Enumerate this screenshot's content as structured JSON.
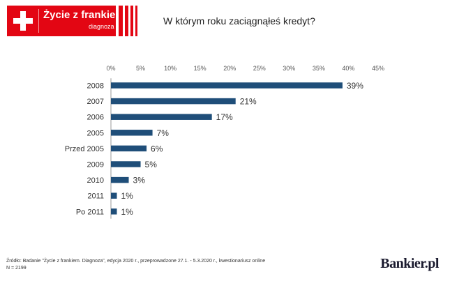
{
  "logo": {
    "title": "Życie z frankiem",
    "subtitle": "diagnoza"
  },
  "title": "W którym roku zaciągnąłeś kredyt?",
  "colors": {
    "bar": "#1f4e79",
    "brand_red": "#e30613"
  },
  "chart_data": {
    "type": "bar",
    "orientation": "horizontal",
    "categories": [
      "2008",
      "2007",
      "2006",
      "2005",
      "Przed 2005",
      "2009",
      "2010",
      "2011",
      "Po 2011"
    ],
    "values": [
      39,
      21,
      17,
      7,
      6,
      5,
      3,
      1,
      1
    ],
    "value_labels": [
      "39%",
      "21%",
      "17%",
      "7%",
      "6%",
      "5%",
      "3%",
      "1%",
      "1%"
    ],
    "x_ticks": [
      "0%",
      "5%",
      "10%",
      "15%",
      "20%",
      "25%",
      "30%",
      "35%",
      "40%",
      "45%"
    ],
    "xlim": [
      0,
      45
    ],
    "grid": false,
    "title": "W którym roku zaciągnąłeś kredyt?"
  },
  "footer": {
    "source": "Źródło: Badanie \"Życie z frankiem. Diagnoza\", edycja 2020 r., przeprowadzone 27.1. - 5.3.2020 r., kwestionariusz online",
    "n": "N = 2199"
  },
  "brand": "Bankier.pl"
}
